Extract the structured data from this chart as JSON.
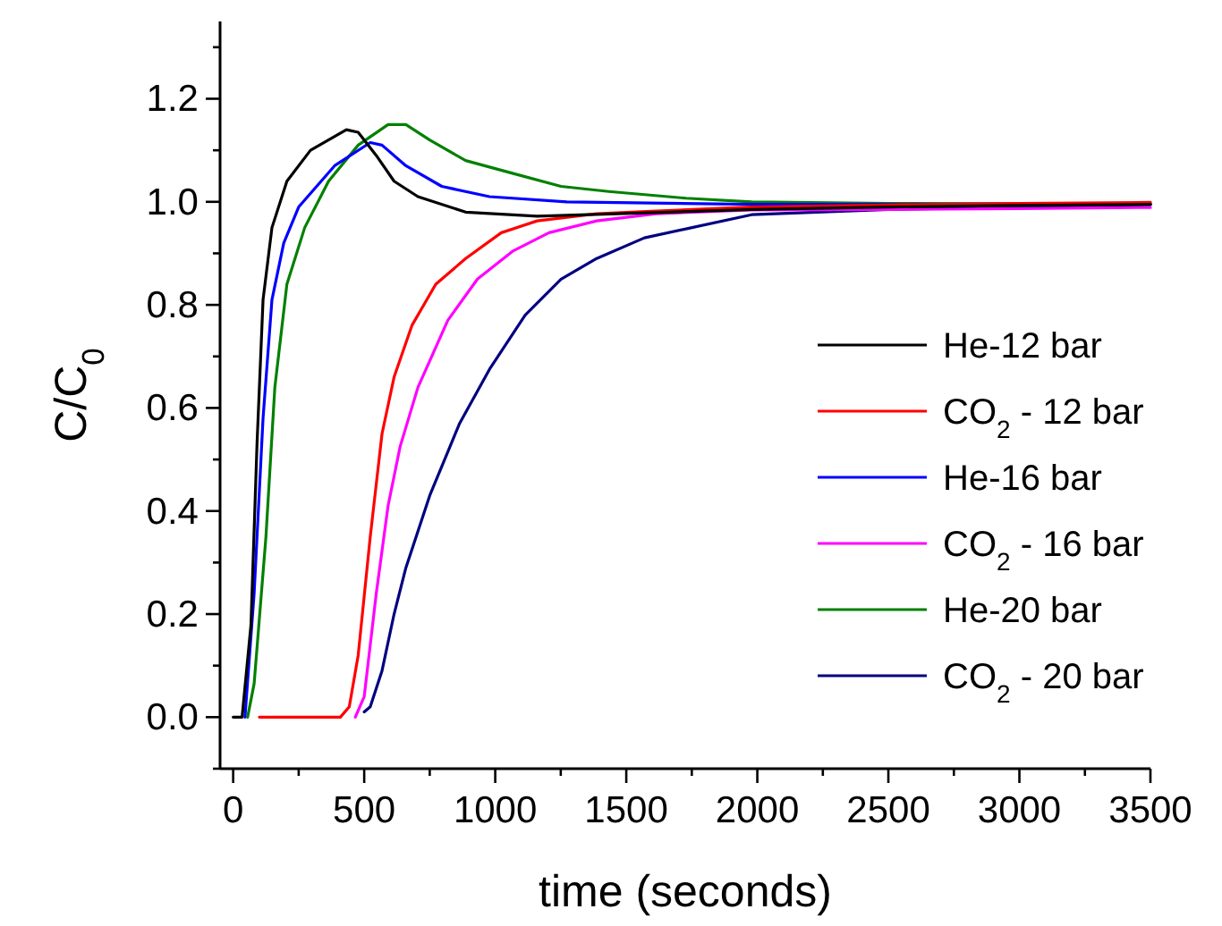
{
  "chart_data": {
    "type": "line",
    "xlabel": "time (seconds)",
    "ylabel": "C/C$_{0}$",
    "xlim": [
      -50,
      3500
    ],
    "ylim": [
      -0.1,
      1.35
    ],
    "xticks": [
      0,
      {
        "value": 250,
        "label": null
      },
      500,
      {
        "value": 750,
        "label": null
      },
      1000,
      {
        "value": 1250,
        "label": null
      },
      1500,
      {
        "value": 1750,
        "label": null
      },
      2000,
      {
        "value": 2250,
        "label": null
      },
      2500,
      {
        "value": 2750,
        "label": null
      },
      3000,
      {
        "value": 3250,
        "label": null
      },
      3500
    ],
    "yticks": [
      {
        "value": -0.1,
        "label": null
      },
      {
        "value": 0,
        "label": "0.0"
      },
      {
        "value": 0.1,
        "label": null
      },
      0.2,
      {
        "value": 0.3,
        "label": null
      },
      0.4,
      {
        "value": 0.5,
        "label": null
      },
      0.6,
      {
        "value": 0.7,
        "label": null
      },
      0.8,
      {
        "value": 0.9,
        "label": null
      },
      {
        "value": 1,
        "label": "1.0"
      },
      {
        "value": 1.1,
        "label": null
      },
      1.2,
      {
        "value": 1.3,
        "label": null
      }
    ],
    "grid": false,
    "legend": "right",
    "marker": "none",
    "line_style": "solid",
    "series": [
      {
        "name": "He-12 bar",
        "color": "#000000",
        "x": [
          0,
          20,
          34,
          68,
          91,
          114,
          148,
          205,
          295,
          432,
          477,
          546,
          614,
          705,
          887,
          1160,
          1978,
          2500,
          3000,
          3500
        ],
        "values": [
          0,
          0,
          0,
          0.18,
          0.53,
          0.81,
          0.95,
          1.04,
          1.1,
          1.14,
          1.135,
          1.09,
          1.04,
          1.01,
          0.98,
          0.972,
          0.985,
          0.99,
          0.993,
          0.995
        ]
      },
      {
        "name": "CO$_{2}$ - 12 bar",
        "color": "#ff0000",
        "x": [
          100,
          409,
          443,
          477,
          523,
          568,
          614,
          682,
          773,
          887,
          1023,
          1160,
          1387,
          1614,
          1978,
          2500,
          3000,
          3500
        ],
        "values": [
          0,
          0,
          0.02,
          0.12,
          0.35,
          0.55,
          0.66,
          0.76,
          0.84,
          0.89,
          0.94,
          0.963,
          0.977,
          0.982,
          0.99,
          0.994,
          0.997,
          0.999
        ]
      },
      {
        "name": "He-16 bar",
        "color": "#0000ff",
        "x": [
          45,
          80,
          114,
          148,
          193,
          250,
          387,
          523,
          568,
          659,
          796,
          978,
          1273,
          1978,
          2500,
          3000,
          3500
        ],
        "values": [
          0,
          0.24,
          0.58,
          0.81,
          0.92,
          0.99,
          1.07,
          1.115,
          1.11,
          1.07,
          1.03,
          1.01,
          1.0,
          0.995,
          0.995,
          0.996,
          0.995
        ]
      },
      {
        "name": "CO$_{2}$ - 16 bar",
        "color": "#ff00ff",
        "x": [
          466,
          500,
          546,
          591,
          637,
          705,
          819,
          932,
          1069,
          1205,
          1387,
          1614,
          1978,
          2500,
          3000,
          3500
        ],
        "values": [
          0,
          0.04,
          0.24,
          0.41,
          0.525,
          0.64,
          0.77,
          0.85,
          0.905,
          0.94,
          0.963,
          0.977,
          0.984,
          0.985,
          0.987,
          0.989
        ]
      },
      {
        "name": "He-20 bar",
        "color": "#008000",
        "x": [
          55,
          80,
          125,
          159,
          205,
          273,
          364,
          477,
          591,
          659,
          750,
          887,
          1069,
          1251,
          1433,
          1728,
          1978,
          2500,
          3000,
          3500
        ],
        "values": [
          0,
          0.065,
          0.35,
          0.64,
          0.84,
          0.95,
          1.04,
          1.11,
          1.15,
          1.15,
          1.12,
          1.08,
          1.055,
          1.03,
          1.02,
          1.007,
          1.0,
          0.997,
          0.996,
          0.995
        ]
      },
      {
        "name": "CO$_{2}$ - 20 bar",
        "color": "#000080",
        "x": [
          500,
          523,
          568,
          614,
          659,
          750,
          864,
          978,
          1114,
          1251,
          1387,
          1569,
          1751,
          1978,
          2500,
          3000,
          3500
        ],
        "values": [
          0.01,
          0.02,
          0.09,
          0.2,
          0.29,
          0.43,
          0.57,
          0.675,
          0.78,
          0.85,
          0.89,
          0.93,
          0.95,
          0.975,
          0.985,
          0.99,
          0.995
        ]
      }
    ]
  }
}
